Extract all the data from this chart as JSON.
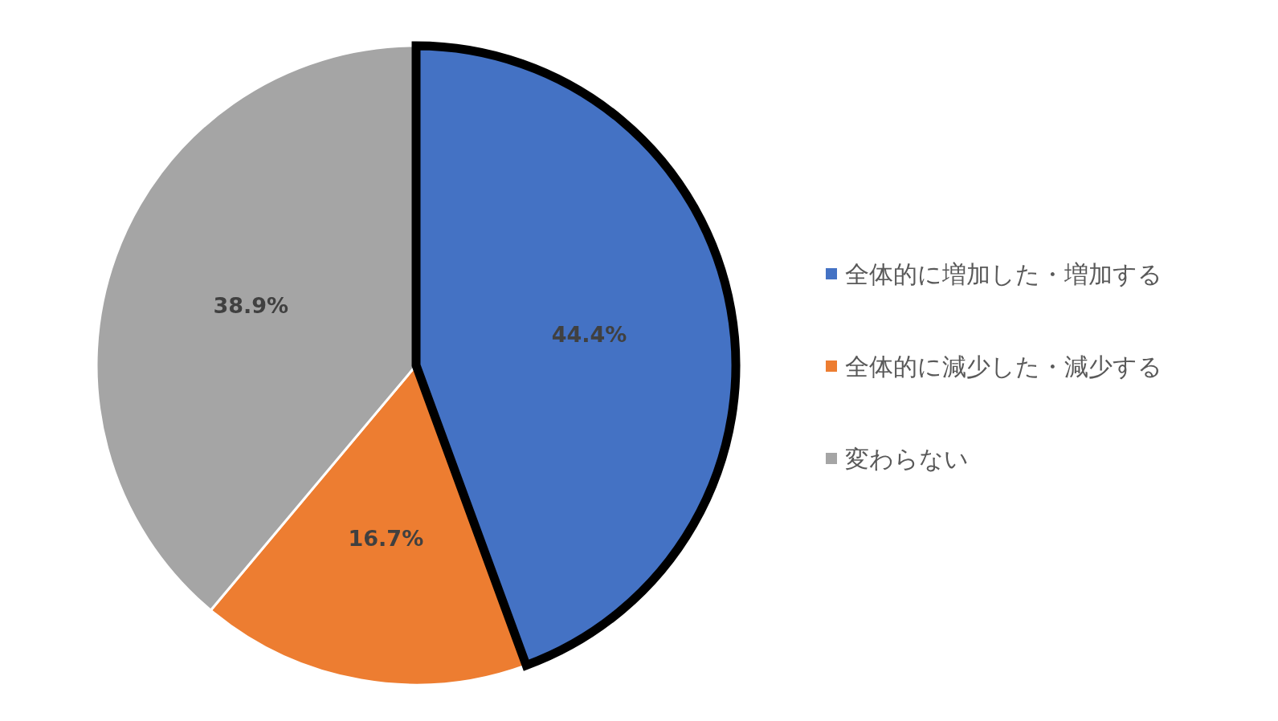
{
  "chart_data": {
    "type": "pie",
    "categories": [
      "全体的に増加した・増加する",
      "全体的に減少した・減少する",
      "変わらない"
    ],
    "values": [
      44.4,
      16.7,
      38.9
    ],
    "colors": [
      "#4472c4",
      "#ed7d31",
      "#a5a5a5"
    ],
    "value_labels": [
      "44.4%",
      "16.7%",
      "38.9%"
    ],
    "legend": "right"
  }
}
